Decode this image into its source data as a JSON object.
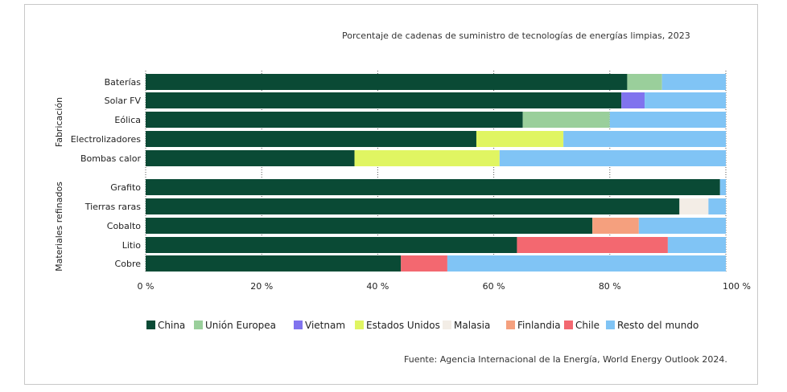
{
  "chart_data": {
    "type": "bar",
    "orientation": "horizontal",
    "stacked": true,
    "title": "Porcentaje de cadenas de suministro de tecnologías de energías limpias, 2023",
    "source": "Fuente: Agencia Internacional de la Energía, World Energy Outlook 2024.",
    "xlim": [
      0,
      100
    ],
    "x_ticks": [
      "0 %",
      "20 %",
      "40 %",
      "60 %",
      "80 %",
      "100 %"
    ],
    "groups": [
      "Fabricación",
      "Materiales refinados"
    ],
    "categories": [
      "Baterías",
      "Solar FV",
      "Eólica",
      "Electrolizadores",
      "Bombas calor",
      "Grafito",
      "Tierras raras",
      "Cobalto",
      "Litio",
      "Cobre"
    ],
    "category_groups": [
      "Fabricación",
      "Fabricación",
      "Fabricación",
      "Fabricación",
      "Fabricación",
      "Materiales refinados",
      "Materiales refinados",
      "Materiales refinados",
      "Materiales refinados",
      "Materiales refinados"
    ],
    "series": [
      {
        "name": "China",
        "color": "#0a4a35",
        "values": [
          83,
          82,
          65,
          57,
          36,
          99,
          92,
          77,
          64,
          44
        ]
      },
      {
        "name": "Unión Europea",
        "color": "#9acf9b",
        "values": [
          6,
          0,
          15,
          0,
          0,
          0,
          0,
          0,
          0,
          0
        ]
      },
      {
        "name": "Vietnam",
        "color": "#8073ee",
        "values": [
          0,
          4,
          0,
          0,
          0,
          0,
          0,
          0,
          0,
          0
        ]
      },
      {
        "name": "Estados Unidos",
        "color": "#e0f562",
        "values": [
          0,
          0,
          0,
          15,
          25,
          0,
          0,
          0,
          0,
          0
        ]
      },
      {
        "name": "Malasia",
        "color": "#f3ede6",
        "values": [
          0,
          0,
          0,
          0,
          0,
          0,
          5,
          0,
          0,
          0
        ]
      },
      {
        "name": "Finlandia",
        "color": "#f5a07e",
        "values": [
          0,
          0,
          0,
          0,
          0,
          0,
          0,
          8,
          0,
          0
        ]
      },
      {
        "name": "Chile",
        "color": "#f36870",
        "values": [
          0,
          0,
          0,
          0,
          0,
          0,
          0,
          0,
          26,
          8
        ]
      },
      {
        "name": "Resto del mundo",
        "color": "#80c4f5",
        "values": [
          11,
          14,
          20,
          28,
          39,
          1,
          3,
          15,
          10,
          48
        ]
      }
    ]
  }
}
